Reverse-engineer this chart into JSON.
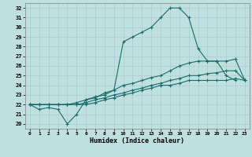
{
  "xlabel": "Humidex (Indice chaleur)",
  "bg_color": "#c0e0e0",
  "line_color": "#1a6b6b",
  "grid_color": "#a8cccc",
  "xlim": [
    -0.5,
    23.5
  ],
  "ylim": [
    19.5,
    32.5
  ],
  "xticks": [
    0,
    1,
    2,
    3,
    4,
    5,
    6,
    7,
    8,
    9,
    10,
    11,
    12,
    13,
    14,
    15,
    16,
    17,
    18,
    19,
    20,
    21,
    22,
    23
  ],
  "yticks": [
    20,
    21,
    22,
    23,
    24,
    25,
    26,
    27,
    28,
    29,
    30,
    31,
    32
  ],
  "curve1_x": [
    0,
    1,
    2,
    3,
    4,
    5,
    6,
    7,
    8,
    9,
    10,
    11,
    12,
    13,
    14,
    15,
    16,
    17,
    18,
    19,
    20,
    21,
    22
  ],
  "curve1_y": [
    22,
    21.5,
    21.7,
    21.5,
    20.0,
    21.0,
    22.5,
    22.7,
    23.2,
    23.5,
    28.5,
    29.0,
    29.5,
    30.0,
    31.0,
    32.0,
    32.0,
    31.0,
    27.8,
    26.5,
    26.5,
    25.0,
    24.5
  ],
  "curve2_x": [
    0,
    1,
    2,
    3,
    4,
    5,
    6,
    7,
    8,
    9,
    10,
    11,
    12,
    13,
    14,
    15,
    16,
    17,
    18,
    19,
    20,
    21,
    22,
    23
  ],
  "curve2_y": [
    22,
    22,
    22,
    22,
    22,
    22.2,
    22.5,
    22.8,
    23.0,
    23.5,
    24.0,
    24.2,
    24.5,
    24.8,
    25.0,
    25.5,
    26.0,
    26.3,
    26.5,
    26.5,
    26.5,
    26.5,
    26.7,
    24.5
  ],
  "curve3_x": [
    0,
    1,
    2,
    3,
    4,
    5,
    6,
    7,
    8,
    9,
    10,
    11,
    12,
    13,
    14,
    15,
    16,
    17,
    18,
    19,
    20,
    21,
    22,
    23
  ],
  "curve3_y": [
    22,
    22,
    22,
    22,
    22,
    22,
    22.2,
    22.5,
    22.7,
    23.0,
    23.2,
    23.5,
    23.7,
    24.0,
    24.2,
    24.5,
    24.7,
    25.0,
    25.0,
    25.2,
    25.3,
    25.5,
    25.5,
    24.5
  ],
  "curve4_x": [
    0,
    1,
    2,
    3,
    4,
    5,
    6,
    7,
    8,
    9,
    10,
    11,
    12,
    13,
    14,
    15,
    16,
    17,
    18,
    19,
    20,
    21,
    22,
    23
  ],
  "curve4_y": [
    22,
    22,
    22,
    22,
    22,
    22,
    22,
    22.2,
    22.5,
    22.7,
    23.0,
    23.2,
    23.5,
    23.7,
    24.0,
    24.0,
    24.2,
    24.5,
    24.5,
    24.5,
    24.5,
    24.5,
    24.7,
    24.5
  ]
}
